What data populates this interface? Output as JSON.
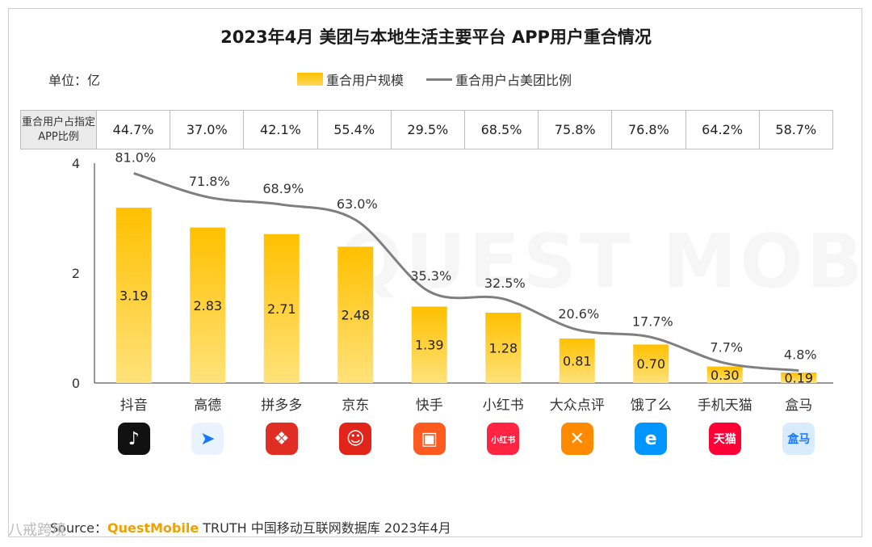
{
  "title": "2023年4月 美团与本地生活主要平台 APP用户重合情况",
  "unit_label": "单位：亿",
  "legend": {
    "bar_label": "重合用户规模",
    "line_label": "重合用户占美团比例"
  },
  "ratio_table": {
    "header": "重合用户占指定APP比例",
    "values": [
      "44.7%",
      "37.0%",
      "42.1%",
      "55.4%",
      "29.5%",
      "68.5%",
      "75.8%",
      "76.8%",
      "64.2%",
      "58.7%"
    ]
  },
  "watermark": "QUEST MOBILE",
  "source": {
    "prefix": "Source：",
    "brand": "QuestMobile",
    "rest": " TRUTH 中国移动互联网数据库 2023年4月"
  },
  "corner_watermark": "八戒跨境",
  "colors": {
    "bar_top": "#ffc000",
    "bar_bottom": "#ffe27a",
    "line": "#7f7f7f"
  },
  "app_icons": [
    {
      "name": "douyin-icon",
      "bg": "#111111",
      "glyph": "♪"
    },
    {
      "name": "gaode-icon",
      "bg": "#e8f3ff",
      "glyph": "➤"
    },
    {
      "name": "pinduoduo-icon",
      "bg": "#e02e24",
      "glyph": "❖"
    },
    {
      "name": "jingdong-icon",
      "bg": "#e1251b",
      "glyph": "☺"
    },
    {
      "name": "kuaishou-icon",
      "bg": "#ff5a1f",
      "glyph": "▣"
    },
    {
      "name": "xiaohongshu-icon",
      "bg": "#ff2442",
      "glyph": "小红书"
    },
    {
      "name": "dazhongdianping-icon",
      "bg": "#ff8a00",
      "glyph": "✕"
    },
    {
      "name": "eleme-icon",
      "bg": "#0095ff",
      "glyph": "e"
    },
    {
      "name": "tmall-icon",
      "bg": "#ff0036",
      "glyph": "天猫"
    },
    {
      "name": "hema-icon",
      "bg": "#d9ecff",
      "glyph": "盒马"
    }
  ],
  "chart_data": {
    "type": "bar",
    "categories": [
      "抖音",
      "高德",
      "拼多多",
      "京东",
      "快手",
      "小红书",
      "大众点评",
      "饿了么",
      "手机天猫",
      "盒马"
    ],
    "series": [
      {
        "name": "重合用户规模",
        "type": "bar",
        "values": [
          3.19,
          2.83,
          2.71,
          2.48,
          1.39,
          1.28,
          0.81,
          0.7,
          0.3,
          0.19
        ]
      },
      {
        "name": "重合用户占美团比例",
        "type": "line",
        "values": [
          81.0,
          71.8,
          68.9,
          63.0,
          35.3,
          32.5,
          20.6,
          17.7,
          7.7,
          4.8
        ],
        "labels": [
          "81.0%",
          "71.8%",
          "68.9%",
          "63.0%",
          "35.3%",
          "32.5%",
          "20.6%",
          "17.7%",
          "7.7%",
          "4.8%"
        ]
      }
    ],
    "bar_labels": [
      "3.19",
      "2.83",
      "2.71",
      "2.48",
      "1.39",
      "1.28",
      "0.81",
      "0.70",
      "0.30",
      "0.19"
    ],
    "yticks": [
      "0",
      "2",
      "4"
    ],
    "ylim": [
      0,
      4
    ],
    "ylim_line": [
      0,
      100
    ],
    "grid": false,
    "legend_position": "top"
  }
}
